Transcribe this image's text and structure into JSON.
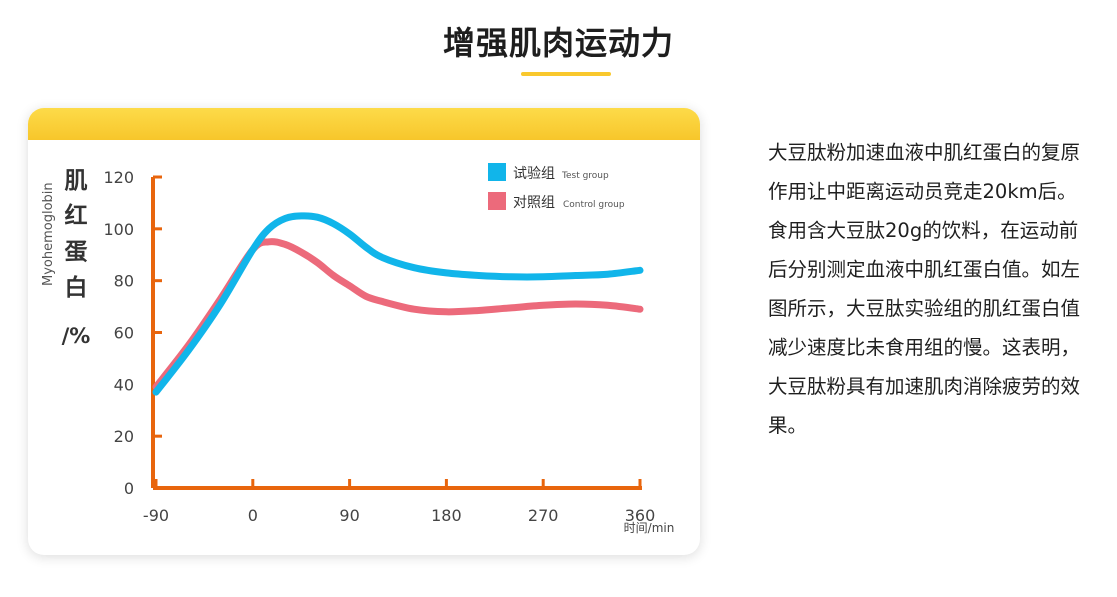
{
  "page": {
    "title": "增强肌肉运动力",
    "description": "大豆肽粉加速血液中肌红蛋白的复原作用让中距离运动员竞走20km后。食用含大豆肽20g的饮料，在运动前后分别测定血液中肌红蛋白值。如左图所示，大豆肽实验组的肌红蛋白值减少速度比未食用组的慢。这表明，大豆肽粉具有加速肌肉消除疲劳的效果。"
  },
  "colors": {
    "accent": "#f9c82d",
    "axis": "#e8650d",
    "test": "#11b5ea",
    "control": "#ec6a7b"
  },
  "chart_data": {
    "type": "line",
    "ylabel_en": "Myohemoglobin",
    "ylabel_cn": [
      "肌",
      "红",
      "蛋",
      "白",
      "/%"
    ],
    "xlabel": "时间/min",
    "xticks": [
      "-90",
      "0",
      "90",
      "180",
      "270",
      "360"
    ],
    "yticks": [
      "0",
      "20",
      "40",
      "60",
      "80",
      "100",
      "120"
    ],
    "xlim": [
      -90,
      360
    ],
    "ylim": [
      0,
      120
    ],
    "grid": false,
    "legend_position": "top-right",
    "series": [
      {
        "name": "试验组",
        "name_en": "Test group",
        "x": [
          -90,
          -60,
          -30,
          0,
          15,
          30,
          45,
          60,
          75,
          90,
          105,
          120,
          150,
          180,
          210,
          240,
          270,
          300,
          330,
          360
        ],
        "y": [
          37,
          53,
          71,
          92,
          100,
          104,
          105,
          104.5,
          102,
          98,
          93,
          89,
          85,
          83,
          82,
          81.5,
          81.5,
          82,
          82.5,
          84
        ]
      },
      {
        "name": "对照组",
        "name_en": "Control group",
        "x": [
          -90,
          -60,
          -30,
          0,
          15,
          30,
          45,
          60,
          75,
          90,
          105,
          120,
          150,
          180,
          210,
          240,
          270,
          300,
          330,
          360
        ],
        "y": [
          39,
          55,
          73,
          92,
          95,
          94,
          91,
          87,
          82,
          78,
          74,
          72,
          69,
          68,
          68.5,
          69.5,
          70.5,
          71,
          70.5,
          69
        ]
      }
    ]
  }
}
